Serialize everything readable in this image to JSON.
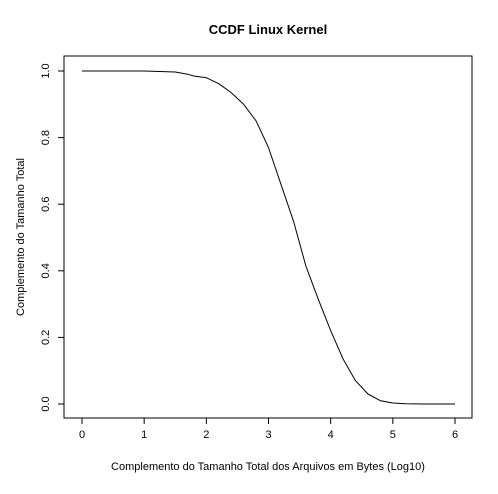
{
  "chart_data": {
    "type": "line",
    "title": "CCDF Linux Kernel",
    "xlabel": "Complemento do Tamanho Total dos Arquivos em Bytes (Log10)",
    "ylabel": "Complemento do Tamanho Total",
    "xlim": [
      0,
      6
    ],
    "ylim": [
      0,
      1
    ],
    "x_ticks": [
      "0",
      "1",
      "2",
      "3",
      "4",
      "5",
      "6"
    ],
    "y_ticks": [
      "0.0",
      "0.2",
      "0.4",
      "0.6",
      "0.8",
      "1.0"
    ],
    "grid": false,
    "legend": "none",
    "series": [
      {
        "x": [
          0,
          1.0,
          1.5,
          1.7,
          1.8,
          2.0,
          2.2,
          2.4,
          2.6,
          2.8,
          3.0,
          3.2,
          3.4,
          3.6,
          3.8,
          4.0,
          4.2,
          4.4,
          4.6,
          4.8,
          5.0,
          5.2,
          5.5,
          6.0
        ],
        "y": [
          1.0,
          1.0,
          0.997,
          0.99,
          0.985,
          0.98,
          0.962,
          0.935,
          0.9,
          0.85,
          0.77,
          0.66,
          0.55,
          0.415,
          0.315,
          0.22,
          0.135,
          0.07,
          0.03,
          0.01,
          0.003,
          0.001,
          0.0,
          0.0
        ]
      }
    ]
  }
}
